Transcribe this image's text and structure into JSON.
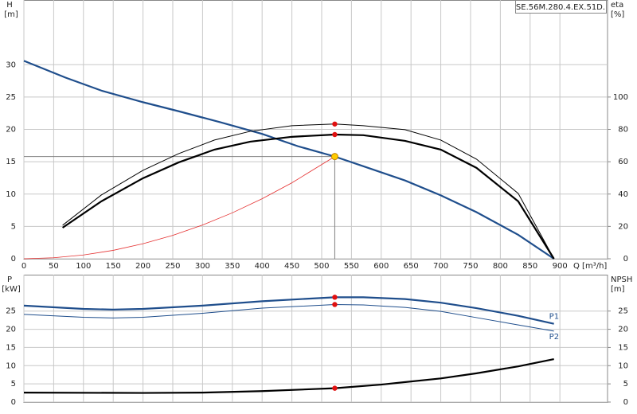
{
  "chart_data": [
    {
      "type": "line",
      "title": "SE.56M.280.4.EX.51D.",
      "ylabel": "H",
      "yunit": "[m]",
      "y2label": "eta",
      "y2unit": "[%]",
      "xlabel": "Q [m³/h]",
      "xlim": [
        0,
        980
      ],
      "xticks": [
        0,
        50,
        100,
        150,
        200,
        250,
        300,
        350,
        400,
        450,
        500,
        550,
        600,
        650,
        700,
        750,
        800,
        850,
        900
      ],
      "ylim": [
        0,
        40
      ],
      "yticks": [
        0,
        5,
        10,
        15,
        20,
        25,
        30
      ],
      "y2lim": [
        0,
        160
      ],
      "y2ticks": [
        0,
        20,
        40,
        60,
        80,
        100
      ],
      "grid": true,
      "series": [
        {
          "color": "#1f4e8c",
          "width": 2.2,
          "x": [
            0,
            70,
            130,
            200,
            260,
            330,
            400,
            460,
            522,
            570,
            640,
            700,
            760,
            830,
            890
          ],
          "values": [
            30.6,
            28,
            26,
            24.2,
            22.8,
            21.1,
            19.3,
            17.4,
            15.8,
            14.3,
            12.1,
            9.8,
            7.2,
            3.7,
            0
          ]
        },
        {
          "color": "#000000",
          "width": 2.2,
          "axis": "y2",
          "x": [
            65,
            130,
            200,
            260,
            320,
            380,
            450,
            522,
            570,
            640,
            700,
            760,
            830,
            890
          ],
          "values": [
            19.2,
            35.5,
            49.8,
            59.6,
            67.5,
            72.4,
            75.4,
            76.8,
            76.4,
            72.9,
            67.5,
            56.2,
            35.5,
            0
          ]
        },
        {
          "color": "#000000",
          "width": 1,
          "axis": "y2",
          "x": [
            65,
            130,
            200,
            260,
            320,
            380,
            450,
            522,
            570,
            640,
            700,
            760,
            830,
            890
          ],
          "values": [
            20.7,
            39.4,
            54.7,
            65,
            73.4,
            78.8,
            82.3,
            83.3,
            82.3,
            79.8,
            73.4,
            61.6,
            40.4,
            0
          ]
        },
        {
          "color": "#e53030",
          "width": 0.8,
          "x": [
            0,
            50,
            100,
            150,
            200,
            250,
            300,
            350,
            400,
            450,
            522
          ],
          "values": [
            0,
            0.15,
            0.58,
            1.3,
            2.32,
            3.62,
            5.22,
            7.1,
            9.28,
            11.74,
            15.8
          ]
        }
      ],
      "markers": [
        {
          "x": 522,
          "y": 15.8,
          "color": "#ffcc00",
          "guide": true
        },
        {
          "x": 522,
          "y": 76.8,
          "axis": "y2",
          "color": "#e01010"
        },
        {
          "x": 522,
          "y": 83.3,
          "axis": "y2",
          "color": "#e01010"
        }
      ]
    },
    {
      "type": "line",
      "ylabel": "P",
      "yunit": "[kW]",
      "y2label": "NPSH",
      "y2unit": "[m]",
      "xlim": [
        0,
        980
      ],
      "xticks": [
        0,
        50,
        100,
        150,
        200,
        250,
        300,
        350,
        400,
        450,
        500,
        550,
        600,
        650,
        700,
        750,
        800,
        850,
        900
      ],
      "ylim": [
        0,
        35
      ],
      "yticks": [
        0,
        5,
        10,
        15,
        20,
        25
      ],
      "y2lim": [
        0,
        35
      ],
      "y2ticks": [
        0,
        5,
        10,
        15,
        20,
        25
      ],
      "grid": true,
      "series": [
        {
          "name": "P1",
          "color": "#1f4e8c",
          "width": 2.2,
          "x": [
            0,
            100,
            150,
            200,
            300,
            400,
            522,
            570,
            640,
            700,
            760,
            830,
            890
          ],
          "values": [
            26.5,
            25.6,
            25.4,
            25.6,
            26.5,
            27.7,
            28.8,
            28.8,
            28.3,
            27.3,
            25.8,
            23.7,
            21.5
          ]
        },
        {
          "name": "P2",
          "color": "#1f4e8c",
          "width": 1,
          "x": [
            0,
            100,
            150,
            200,
            300,
            400,
            522,
            570,
            640,
            700,
            760,
            830,
            890
          ],
          "values": [
            24.1,
            23.3,
            23.1,
            23.3,
            24.4,
            25.8,
            26.8,
            26.7,
            26,
            24.9,
            23.2,
            21.2,
            19.5
          ]
        },
        {
          "color": "#000000",
          "width": 2.2,
          "axis": "y2",
          "x": [
            0,
            200,
            300,
            400,
            522,
            600,
            700,
            760,
            830,
            890
          ],
          "values": [
            2.6,
            2.5,
            2.6,
            3,
            3.8,
            4.8,
            6.5,
            7.9,
            9.8,
            11.8
          ]
        }
      ],
      "markers": [
        {
          "x": 522,
          "y": 28.8,
          "color": "#e01010"
        },
        {
          "x": 522,
          "y": 26.8,
          "color": "#e01010"
        },
        {
          "x": 522,
          "y": 3.8,
          "axis": "y2",
          "color": "#e01010"
        }
      ]
    }
  ]
}
